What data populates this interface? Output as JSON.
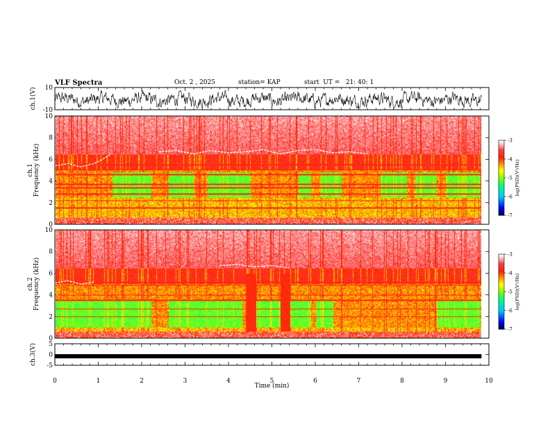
{
  "header": {
    "title": "VLF Spectra",
    "date": "Oct. 2 , 2025",
    "station": "station= KAP",
    "start": "start  UT =   21: 40: 1"
  },
  "chart_data": [
    {
      "type": "line",
      "panel": "ch1-voltage",
      "ylabel": "ch.1(V)",
      "ylim": [
        -10,
        10
      ],
      "yticks": [
        "10",
        "-10"
      ],
      "x_range": [
        0,
        9.83
      ],
      "description": "noisy voltage trace oscillating roughly between -8 and 6 V"
    },
    {
      "type": "heatmap",
      "panel": "ch1-spectrogram",
      "ylabel": "ch.1\nFrequency (kHz)",
      "ylim": [
        0,
        10
      ],
      "yticks": [
        "0",
        "2",
        "4",
        "6",
        "8",
        "10"
      ],
      "colorbar": {
        "label": "log(PSD)(V²/Hz)",
        "range": [
          -7,
          -3
        ],
        "ticks": [
          "-3",
          "-4",
          "-5",
          "-6",
          "-7"
        ],
        "colors": [
          "#000040",
          "#0000ff",
          "#00c8ff",
          "#00ff80",
          "#80ff00",
          "#ffff00",
          "#ffa000",
          "#ff2000",
          "#ff4040",
          "#ffc0c0",
          "#ffffff"
        ]
      },
      "quiet_band_khz": [
        2.5,
        4.8
      ],
      "quiet_intervals_min": [
        [
          1.3,
          2.2
        ],
        [
          2.6,
          3.2
        ],
        [
          3.5,
          4.5
        ],
        [
          5.6,
          5.9
        ],
        [
          6.1,
          6.6
        ],
        [
          7.5,
          8.1
        ],
        [
          8.3,
          8.8
        ],
        [
          9.0,
          9.8
        ]
      ],
      "white_trace_segments": [
        {
          "x": [
            0.0,
            0.3,
            0.6,
            0.9,
            1.1,
            1.3
          ],
          "y": [
            5.4,
            5.6,
            5.3,
            5.6,
            6.0,
            6.5
          ]
        },
        {
          "x": [
            2.4,
            2.8,
            3.2,
            3.6,
            4.0,
            4.4,
            4.8,
            5.2,
            5.6,
            6.0,
            6.4,
            6.8,
            7.2
          ],
          "y": [
            6.7,
            6.8,
            6.5,
            6.8,
            6.6,
            6.7,
            6.9,
            6.5,
            6.8,
            6.9,
            6.6,
            6.7,
            6.5
          ]
        }
      ]
    },
    {
      "type": "heatmap",
      "panel": "ch2-spectrogram",
      "ylabel": "ch.2\nFrequency (kHz)",
      "ylim": [
        0,
        10
      ],
      "yticks": [
        "0",
        "2",
        "4",
        "6",
        "8",
        "10"
      ],
      "colorbar": {
        "label": "log(PSD)(V²/Hz)",
        "range": [
          -7,
          -3
        ],
        "ticks": [
          "-3",
          "-4",
          "-5",
          "-6",
          "-7"
        ]
      },
      "quiet_band_khz": [
        1.0,
        3.5
      ],
      "quiet_intervals_min": [
        [
          0.0,
          2.2
        ],
        [
          2.6,
          4.3
        ],
        [
          4.6,
          5.2
        ],
        [
          5.4,
          5.9
        ],
        [
          6.0,
          6.4
        ],
        [
          8.8,
          9.8
        ]
      ],
      "red_bursts_min": [
        4.5,
        5.3
      ],
      "white_trace_segments": [
        {
          "x": [
            0.0,
            0.3,
            0.6,
            0.9
          ],
          "y": [
            5.1,
            5.3,
            5.0,
            5.2
          ]
        },
        {
          "x": [
            3.8,
            4.2,
            4.6,
            5.0,
            5.4
          ],
          "y": [
            6.7,
            6.8,
            6.6,
            6.7,
            6.5
          ]
        }
      ]
    },
    {
      "type": "line",
      "panel": "ch3-voltage",
      "ylabel": "ch.3(V)",
      "ylim": [
        -5,
        5
      ],
      "yticks": [
        "5",
        "0",
        "-5"
      ],
      "x_range": [
        0,
        9.83
      ],
      "level": -0.8,
      "description": "flat thick trace near -1 V"
    }
  ],
  "xaxis": {
    "label": "Time (min)",
    "range": [
      0,
      10
    ],
    "ticks": [
      "0",
      "1",
      "2",
      "3",
      "4",
      "5",
      "6",
      "7",
      "8",
      "9",
      "10"
    ]
  }
}
